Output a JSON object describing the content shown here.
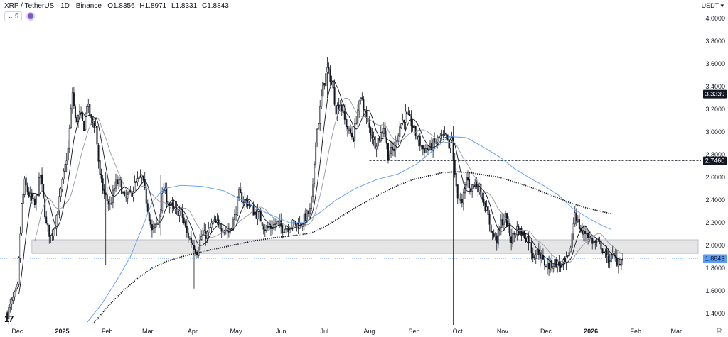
{
  "header": {
    "symbol": "XRP / TetherUS · 1D · Binance",
    "o_label": "O",
    "o_value": "1.8356",
    "h_label": "H",
    "h_value": "1.8971",
    "l_label": "L",
    "l_value": "1.8331",
    "c_label": "C",
    "c_value": "1.8843",
    "indicator_value": "5",
    "currency": "USDT"
  },
  "logo_text": "17",
  "settings_icon": "gear-icon",
  "colors": {
    "candle": "#131722",
    "ma_fast": "#131722",
    "ma_mid": "#9598a1",
    "ma_blue": "#5b9cf6",
    "ma_dotted": "#131722",
    "zone_fill": "#e5e5e5",
    "zone_stroke": "#b2b5be",
    "last_price_bg": "#5b9cf6"
  },
  "chart_data": {
    "type": "candlestick",
    "title": "XRP / TetherUS · 1D · Binance",
    "y_ticks": [
      "4.0000",
      "3.8000",
      "3.6000",
      "3.4000",
      "3.2000",
      "3.0000",
      "2.8000",
      "2.6000",
      "2.4000",
      "2.2000",
      "2.0000",
      "1.8000",
      "1.6000",
      "1.4000"
    ],
    "y_tick_values": [
      4.0,
      3.8,
      3.6,
      3.4,
      3.2,
      3.0,
      2.8,
      2.6,
      2.4,
      2.2,
      2.0,
      1.8,
      1.6,
      1.4
    ],
    "ylim": [
      1.3,
      4.1
    ],
    "x_ticks": [
      "Dec",
      "2025",
      "Feb",
      "Mar",
      "Apr",
      "May",
      "Jun",
      "Jul",
      "Aug",
      "Sep",
      "Oct",
      "Nov",
      "Dec",
      "2026",
      "Feb",
      "Mar"
    ],
    "x_tick_days": [
      0,
      31,
      62,
      90,
      121,
      151,
      182,
      212,
      243,
      274,
      304,
      335,
      365,
      396,
      427,
      455
    ],
    "bold_ticks": [
      "2025",
      "2026"
    ],
    "x_range_days": [
      -10,
      474
    ],
    "last_day": 420,
    "horizontal_levels": [
      {
        "label": "3.3339",
        "value": 3.3339,
        "start_day": 250
      },
      {
        "label": "2.7460",
        "value": 2.746,
        "start_day": 245
      }
    ],
    "support_zone": {
      "low": 1.93,
      "high": 2.05,
      "start_day": 12
    },
    "last_price": {
      "label": "1.8843",
      "value": 1.8843
    },
    "anchors": [
      [
        -5,
        1.4
      ],
      [
        2,
        1.62
      ],
      [
        5,
        2.35
      ],
      [
        7,
        2.55
      ],
      [
        10,
        2.45
      ],
      [
        14,
        2.35
      ],
      [
        18,
        2.62
      ],
      [
        22,
        2.18
      ],
      [
        25,
        2.08
      ],
      [
        28,
        2.2
      ],
      [
        31,
        2.4
      ],
      [
        34,
        2.62
      ],
      [
        37,
        2.85
      ],
      [
        40,
        3.35
      ],
      [
        42,
        3.1
      ],
      [
        45,
        3.15
      ],
      [
        48,
        3.05
      ],
      [
        50,
        3.25
      ],
      [
        53,
        3.1
      ],
      [
        56,
        3.05
      ],
      [
        59,
        2.6
      ],
      [
        62,
        2.45
      ],
      [
        66,
        2.35
      ],
      [
        70,
        2.55
      ],
      [
        73,
        2.55
      ],
      [
        76,
        2.4
      ],
      [
        80,
        2.45
      ],
      [
        84,
        2.55
      ],
      [
        88,
        2.6
      ],
      [
        91,
        2.4
      ],
      [
        95,
        2.12
      ],
      [
        99,
        2.2
      ],
      [
        103,
        2.5
      ],
      [
        107,
        2.35
      ],
      [
        111,
        2.3
      ],
      [
        115,
        2.3
      ],
      [
        119,
        2.1
      ],
      [
        123,
        2.02
      ],
      [
        126,
        1.95
      ],
      [
        129,
        2.08
      ],
      [
        133,
        2.1
      ],
      [
        137,
        2.2
      ],
      [
        141,
        2.18
      ],
      [
        145,
        2.15
      ],
      [
        148,
        2.12
      ],
      [
        152,
        2.25
      ],
      [
        155,
        2.45
      ],
      [
        158,
        2.4
      ],
      [
        161,
        2.38
      ],
      [
        165,
        2.3
      ],
      [
        169,
        2.26
      ],
      [
        173,
        2.15
      ],
      [
        177,
        2.16
      ],
      [
        181,
        2.2
      ],
      [
        185,
        2.15
      ],
      [
        189,
        2.16
      ],
      [
        193,
        2.2
      ],
      [
        197,
        2.18
      ],
      [
        201,
        2.25
      ],
      [
        204,
        2.3
      ],
      [
        206,
        2.5
      ],
      [
        208,
        2.95
      ],
      [
        210,
        3.1
      ],
      [
        213,
        3.4
      ],
      [
        216,
        3.55
      ],
      [
        219,
        3.45
      ],
      [
        222,
        3.2
      ],
      [
        225,
        3.25
      ],
      [
        228,
        3.1
      ],
      [
        231,
        3.0
      ],
      [
        234,
        2.95
      ],
      [
        237,
        3.2
      ],
      [
        240,
        3.3
      ],
      [
        243,
        3.1
      ],
      [
        246,
        3.0
      ],
      [
        249,
        2.9
      ],
      [
        252,
        2.95
      ],
      [
        255,
        3.05
      ],
      [
        258,
        2.8
      ],
      [
        262,
        2.85
      ],
      [
        266,
        3.05
      ],
      [
        270,
        3.15
      ],
      [
        274,
        3.08
      ],
      [
        278,
        2.95
      ],
      [
        282,
        2.85
      ],
      [
        286,
        2.85
      ],
      [
        290,
        2.9
      ],
      [
        294,
        2.95
      ],
      [
        298,
        2.95
      ],
      [
        300,
        2.85
      ],
      [
        302,
        2.95
      ],
      [
        304,
        2.6
      ],
      [
        306,
        2.45
      ],
      [
        309,
        2.35
      ],
      [
        312,
        2.6
      ],
      [
        315,
        2.5
      ],
      [
        318,
        2.55
      ],
      [
        321,
        2.5
      ],
      [
        324,
        2.4
      ],
      [
        327,
        2.25
      ],
      [
        330,
        2.1
      ],
      [
        333,
        2.05
      ],
      [
        336,
        2.2
      ],
      [
        339,
        2.25
      ],
      [
        343,
        2.05
      ],
      [
        347,
        2.15
      ],
      [
        351,
        2.1
      ],
      [
        355,
        2.05
      ],
      [
        358,
        1.92
      ],
      [
        362,
        1.95
      ],
      [
        365,
        1.85
      ],
      [
        369,
        1.82
      ],
      [
        373,
        1.85
      ],
      [
        377,
        1.82
      ],
      [
        380,
        1.84
      ],
      [
        383,
        1.9
      ],
      [
        385,
        2.1
      ],
      [
        387,
        2.3
      ],
      [
        389,
        2.2
      ],
      [
        392,
        2.1
      ],
      [
        395,
        2.12
      ],
      [
        398,
        2.05
      ],
      [
        401,
        2.02
      ],
      [
        405,
        2.0
      ],
      [
        409,
        1.88
      ],
      [
        413,
        1.9
      ],
      [
        417,
        1.85
      ],
      [
        420,
        1.88
      ]
    ],
    "spikes": [
      {
        "day": 101,
        "high": 2.62,
        "low": 2.09
      },
      {
        "day": 63,
        "high": 2.65,
        "low": 1.83
      },
      {
        "day": 124,
        "high": 2.05,
        "low": 1.62
      },
      {
        "day": 191,
        "high": 2.22,
        "low": 1.9
      },
      {
        "day": 303,
        "high": 3.05,
        "low": 1.3
      },
      {
        "day": 216,
        "high": 3.66,
        "low": 3.3
      }
    ],
    "ma_blue_points": [
      [
        50,
        1.32
      ],
      [
        60,
        1.48
      ],
      [
        70,
        1.68
      ],
      [
        80,
        1.9
      ],
      [
        88,
        2.15
      ],
      [
        95,
        2.38
      ],
      [
        103,
        2.5
      ],
      [
        115,
        2.53
      ],
      [
        130,
        2.52
      ],
      [
        145,
        2.48
      ],
      [
        160,
        2.38
      ],
      [
        175,
        2.28
      ],
      [
        190,
        2.2
      ],
      [
        200,
        2.2
      ],
      [
        212,
        2.3
      ],
      [
        222,
        2.4
      ],
      [
        235,
        2.5
      ],
      [
        250,
        2.58
      ],
      [
        265,
        2.63
      ],
      [
        278,
        2.72
      ],
      [
        290,
        2.85
      ],
      [
        300,
        2.96
      ],
      [
        312,
        2.95
      ],
      [
        322,
        2.88
      ],
      [
        335,
        2.78
      ],
      [
        345,
        2.68
      ],
      [
        355,
        2.6
      ],
      [
        365,
        2.53
      ],
      [
        375,
        2.45
      ],
      [
        385,
        2.33
      ],
      [
        395,
        2.25
      ],
      [
        405,
        2.18
      ],
      [
        412,
        2.14
      ]
    ],
    "ma_dotted_points": [
      [
        55,
        1.32
      ],
      [
        65,
        1.47
      ],
      [
        75,
        1.6
      ],
      [
        85,
        1.71
      ],
      [
        95,
        1.8
      ],
      [
        105,
        1.86
      ],
      [
        115,
        1.9
      ],
      [
        125,
        1.93
      ],
      [
        135,
        1.96
      ],
      [
        150,
        2.0
      ],
      [
        165,
        2.04
      ],
      [
        180,
        2.07
      ],
      [
        195,
        2.09
      ],
      [
        205,
        2.11
      ],
      [
        215,
        2.17
      ],
      [
        225,
        2.25
      ],
      [
        235,
        2.33
      ],
      [
        245,
        2.4
      ],
      [
        255,
        2.47
      ],
      [
        265,
        2.53
      ],
      [
        275,
        2.58
      ],
      [
        285,
        2.61
      ],
      [
        295,
        2.64
      ],
      [
        305,
        2.65
      ],
      [
        315,
        2.64
      ],
      [
        325,
        2.62
      ],
      [
        335,
        2.6
      ],
      [
        345,
        2.56
      ],
      [
        355,
        2.52
      ],
      [
        365,
        2.47
      ],
      [
        375,
        2.42
      ],
      [
        385,
        2.37
      ],
      [
        395,
        2.33
      ],
      [
        405,
        2.3
      ],
      [
        412,
        2.28
      ]
    ]
  }
}
